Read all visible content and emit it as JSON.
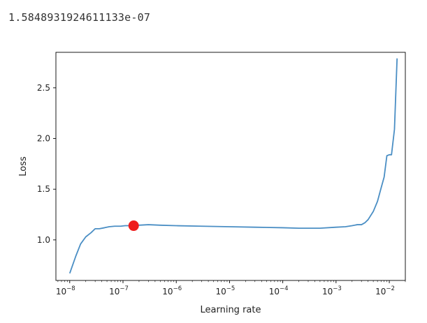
{
  "output_line": "1.5848931924611133e-07",
  "chart_data": {
    "type": "line",
    "title": "",
    "xlabel": "Learning rate",
    "ylabel": "Loss",
    "xscale": "log",
    "xlim": [
      5.5e-09,
      0.02
    ],
    "ylim": [
      0.6,
      2.85
    ],
    "xticks": [
      {
        "value": 1e-08,
        "base": "10",
        "exp": "−8"
      },
      {
        "value": 1e-07,
        "base": "10",
        "exp": "−7"
      },
      {
        "value": 1e-06,
        "base": "10",
        "exp": "−6"
      },
      {
        "value": 1e-05,
        "base": "10",
        "exp": "−5"
      },
      {
        "value": 0.0001,
        "base": "10",
        "exp": "−4"
      },
      {
        "value": 0.001,
        "base": "10",
        "exp": "−3"
      },
      {
        "value": 0.01,
        "base": "10",
        "exp": "−2"
      }
    ],
    "yticks": [
      {
        "value": 1.0,
        "label": "1.0"
      },
      {
        "value": 1.5,
        "label": "1.5"
      },
      {
        "value": 2.0,
        "label": "2.0"
      },
      {
        "value": 2.5,
        "label": "2.5"
      }
    ],
    "line_color": "#4a8ec4",
    "marker_color": "#ee1c1c",
    "series": [
      {
        "x": [
          1e-08,
          1.3e-08,
          1.6e-08,
          2e-08,
          2.5e-08,
          3e-08,
          3.6e-08,
          4.5e-08,
          5.5e-08,
          7e-08,
          9e-08,
          1.1e-07,
          1.3e-07,
          1.5848931924611133e-07,
          2e-07,
          3e-07,
          5e-07,
          1e-06,
          3e-06,
          1e-05,
          3e-05,
          0.0001,
          0.0002,
          0.0005,
          0.001,
          0.0015,
          0.002,
          0.0025,
          0.003,
          0.0035,
          0.004,
          0.005,
          0.006,
          0.007,
          0.008,
          0.009,
          0.01,
          0.011,
          0.0125,
          0.014
        ],
        "y": [
          0.67,
          0.84,
          0.96,
          1.03,
          1.07,
          1.11,
          1.11,
          1.12,
          1.13,
          1.135,
          1.135,
          1.14,
          1.14,
          1.14,
          1.145,
          1.15,
          1.145,
          1.14,
          1.135,
          1.13,
          1.125,
          1.12,
          1.115,
          1.115,
          1.125,
          1.13,
          1.14,
          1.15,
          1.15,
          1.17,
          1.2,
          1.28,
          1.38,
          1.51,
          1.62,
          1.83,
          1.84,
          1.84,
          2.09,
          2.79
        ]
      }
    ],
    "highlight_point": {
      "x": 1.5848931924611133e-07,
      "y": 1.14
    }
  }
}
